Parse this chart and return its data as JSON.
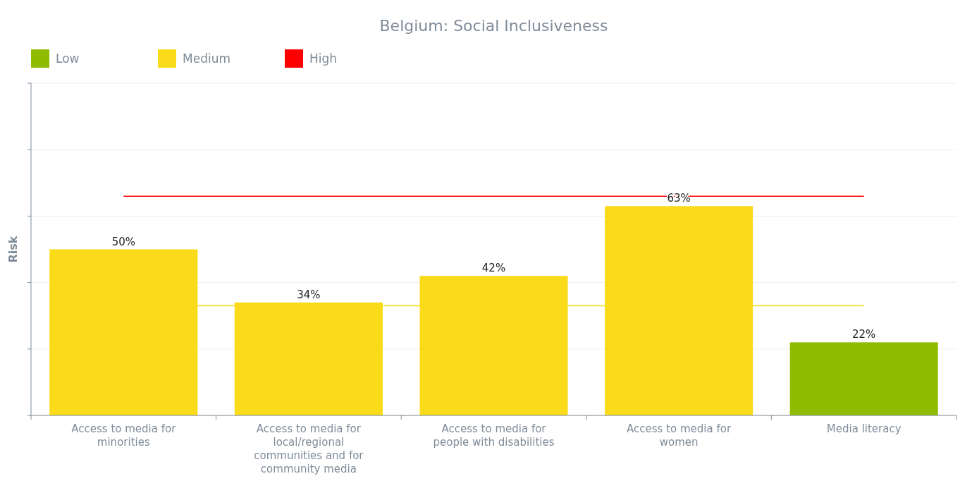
{
  "chart_data": {
    "type": "bar",
    "title": "Belgium: Social Inclusiveness",
    "ylabel": "Risk",
    "categories": [
      "Access to media for minorities",
      "Access to media for local/regional communities and for community media",
      "Access to media for people with disabilities",
      "Access to media for women",
      "Media literacy"
    ],
    "stacked": true,
    "series": [
      {
        "name": "Low",
        "color": "#8fbb00",
        "values": [
          null,
          null,
          null,
          null,
          22
        ],
        "value_labels": [
          null,
          null,
          null,
          null,
          "22%"
        ]
      },
      {
        "name": "Medium",
        "color": "#fadb1a",
        "values": [
          50,
          34,
          42,
          63,
          null
        ],
        "value_labels": [
          "50%",
          "34%",
          "42%",
          "63%",
          null
        ]
      },
      {
        "name": "High",
        "color": "#ff0000",
        "values": [
          null,
          null,
          null,
          null,
          null
        ],
        "value_labels": [
          null,
          null,
          null,
          null,
          null
        ]
      }
    ],
    "ylim": [
      0,
      100
    ],
    "yticks": [
      {
        "value": 0,
        "label": null
      },
      {
        "value": 20,
        "label": null
      },
      {
        "value": 40,
        "label": null
      },
      {
        "value": 60,
        "label": null
      },
      {
        "value": 80,
        "label": null
      },
      {
        "value": 100,
        "label": null
      }
    ],
    "tick_labels": "x",
    "grid": "y",
    "legend": "top left",
    "ref_lines": [
      {
        "axis": "y",
        "value": 33,
        "color": "#fadb1a"
      },
      {
        "axis": "y",
        "value": 66,
        "color": "#ff0000"
      }
    ]
  }
}
